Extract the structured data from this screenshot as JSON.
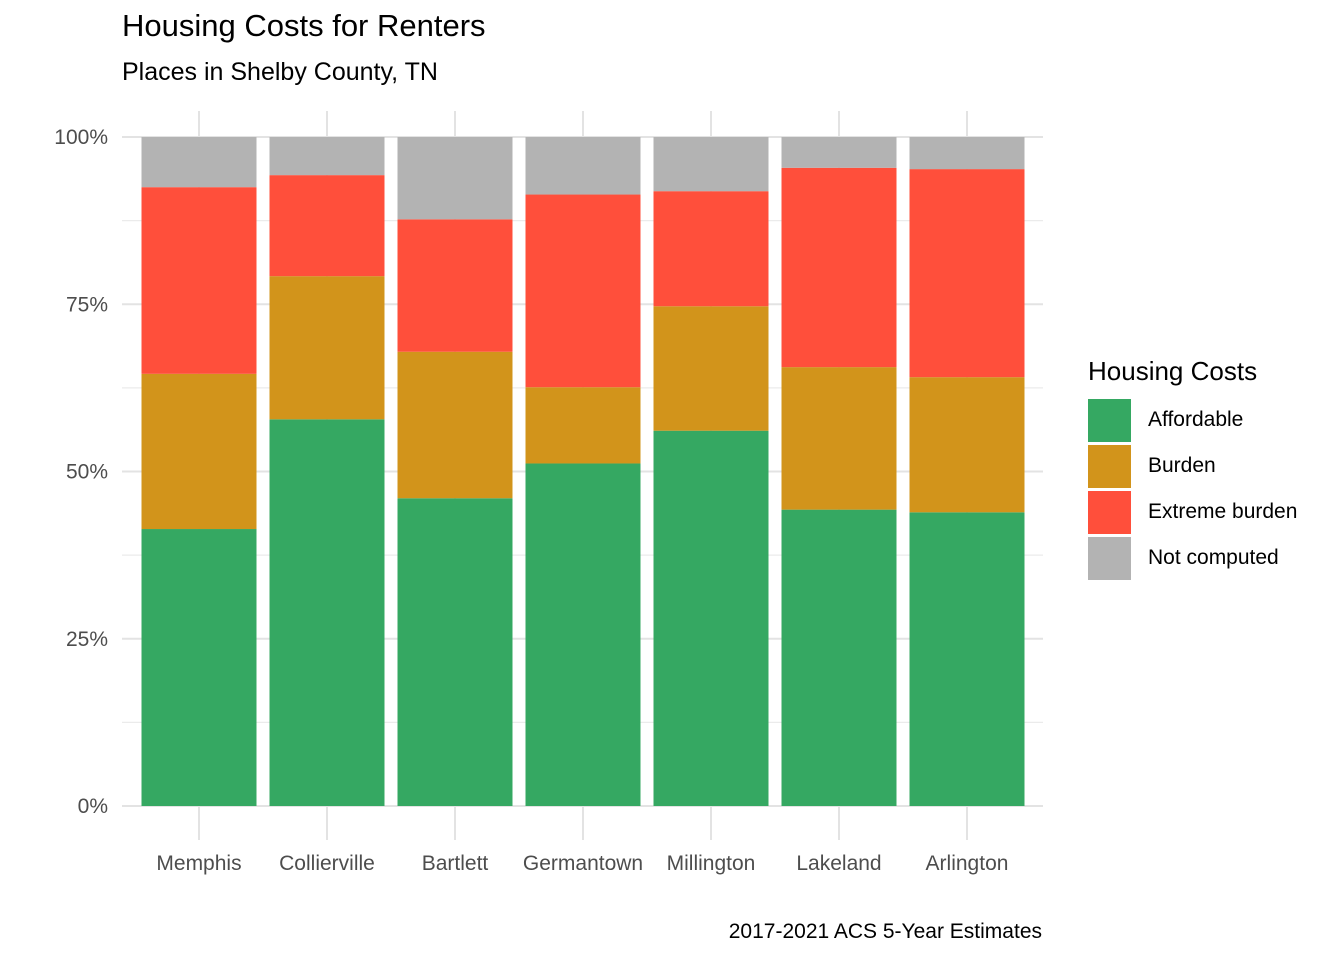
{
  "chart_data": {
    "type": "bar",
    "stacked": true,
    "percent": true,
    "title": "Housing Costs for Renters",
    "subtitle": "Places in Shelby County, TN",
    "caption": "2017-2021 ACS 5-Year Estimates",
    "xlabel": "",
    "ylabel": "",
    "ylim": [
      0,
      1
    ],
    "yticks": [
      0,
      0.25,
      0.5,
      0.75,
      1
    ],
    "ytick_labels": [
      "0%",
      "25%",
      "50%",
      "75%",
      "100%"
    ],
    "grid": true,
    "legend_title": "Housing Costs",
    "legend_position": "right",
    "categories": [
      "Memphis",
      "Collierville",
      "Bartlett",
      "Germantown",
      "Millington",
      "Lakeland",
      "Arlington"
    ],
    "series": [
      {
        "name": "Affordable",
        "color": "#35a862",
        "values": [
          0.414,
          0.578,
          0.46,
          0.512,
          0.561,
          0.443,
          0.439
        ]
      },
      {
        "name": "Burden",
        "color": "#d2941b",
        "values": [
          0.232,
          0.214,
          0.219,
          0.114,
          0.186,
          0.213,
          0.202
        ]
      },
      {
        "name": "Extreme burden",
        "color": "#ff4f3b",
        "values": [
          0.279,
          0.151,
          0.198,
          0.288,
          0.172,
          0.298,
          0.311
        ]
      },
      {
        "name": "Not computed",
        "color": "#b3b3b3",
        "values": [
          0.075,
          0.057,
          0.123,
          0.086,
          0.081,
          0.046,
          0.048
        ]
      }
    ]
  }
}
